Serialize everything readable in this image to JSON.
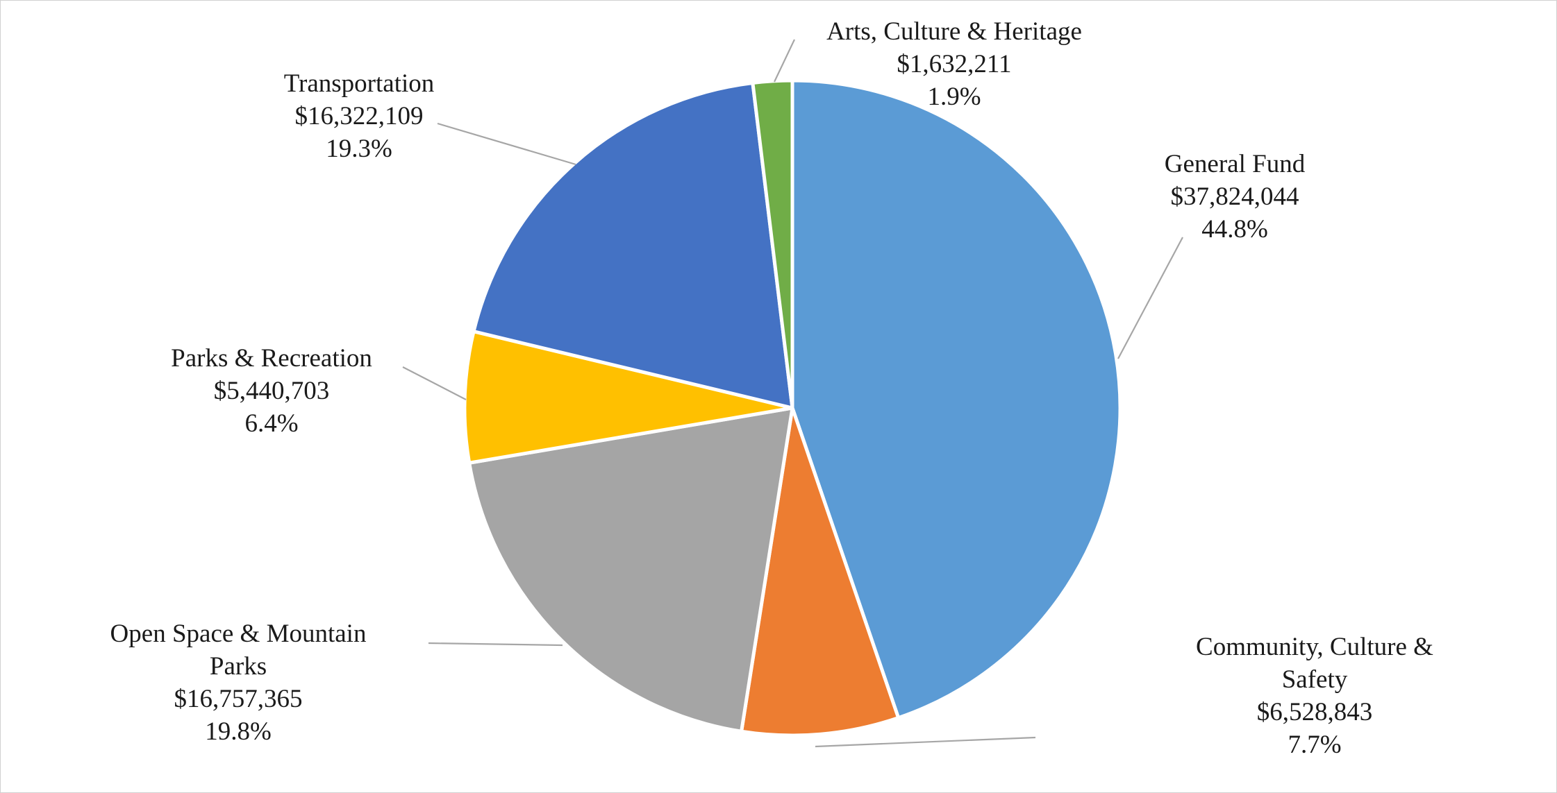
{
  "chart_data": {
    "type": "pie",
    "title": "",
    "slices": [
      {
        "name": "General Fund",
        "amount": "$37,824,044",
        "value": 37824044,
        "percent": "44.8%",
        "color": "#5B9BD5",
        "label_lines": [
          "General Fund",
          "$37,824,044",
          "44.8%"
        ]
      },
      {
        "name": "Community, Culture & Safety",
        "amount": "$6,528,843",
        "value": 6528843,
        "percent": "7.7%",
        "color": "#ED7D31",
        "label_lines": [
          "Community, Culture &",
          "Safety",
          "$6,528,843",
          "7.7%"
        ]
      },
      {
        "name": "Open Space & Mountain Parks",
        "amount": "$16,757,365",
        "value": 16757365,
        "percent": "19.8%",
        "color": "#A5A5A5",
        "label_lines": [
          "Open Space & Mountain",
          "Parks",
          "$16,757,365",
          "19.8%"
        ]
      },
      {
        "name": "Parks & Recreation",
        "amount": "$5,440,703",
        "value": 5440703,
        "percent": "6.4%",
        "color": "#FFC000",
        "label_lines": [
          "Parks & Recreation",
          "$5,440,703",
          "6.4%"
        ]
      },
      {
        "name": "Transportation",
        "amount": "$16,322,109",
        "value": 16322109,
        "percent": "19.3%",
        "color": "#4472C4",
        "label_lines": [
          "Transportation",
          "$16,322,109",
          "19.3%"
        ]
      },
      {
        "name": "Arts, Culture & Heritage",
        "amount": "$1,632,211",
        "value": 1632211,
        "percent": "1.9%",
        "color": "#70AD47",
        "label_lines": [
          "Arts, Culture & Heritage",
          "$1,632,211",
          "1.9%"
        ]
      }
    ],
    "start_angle_deg": 0,
    "direction": "clockwise",
    "legend": "none",
    "data_labels": "outside-with-leader-lines"
  }
}
